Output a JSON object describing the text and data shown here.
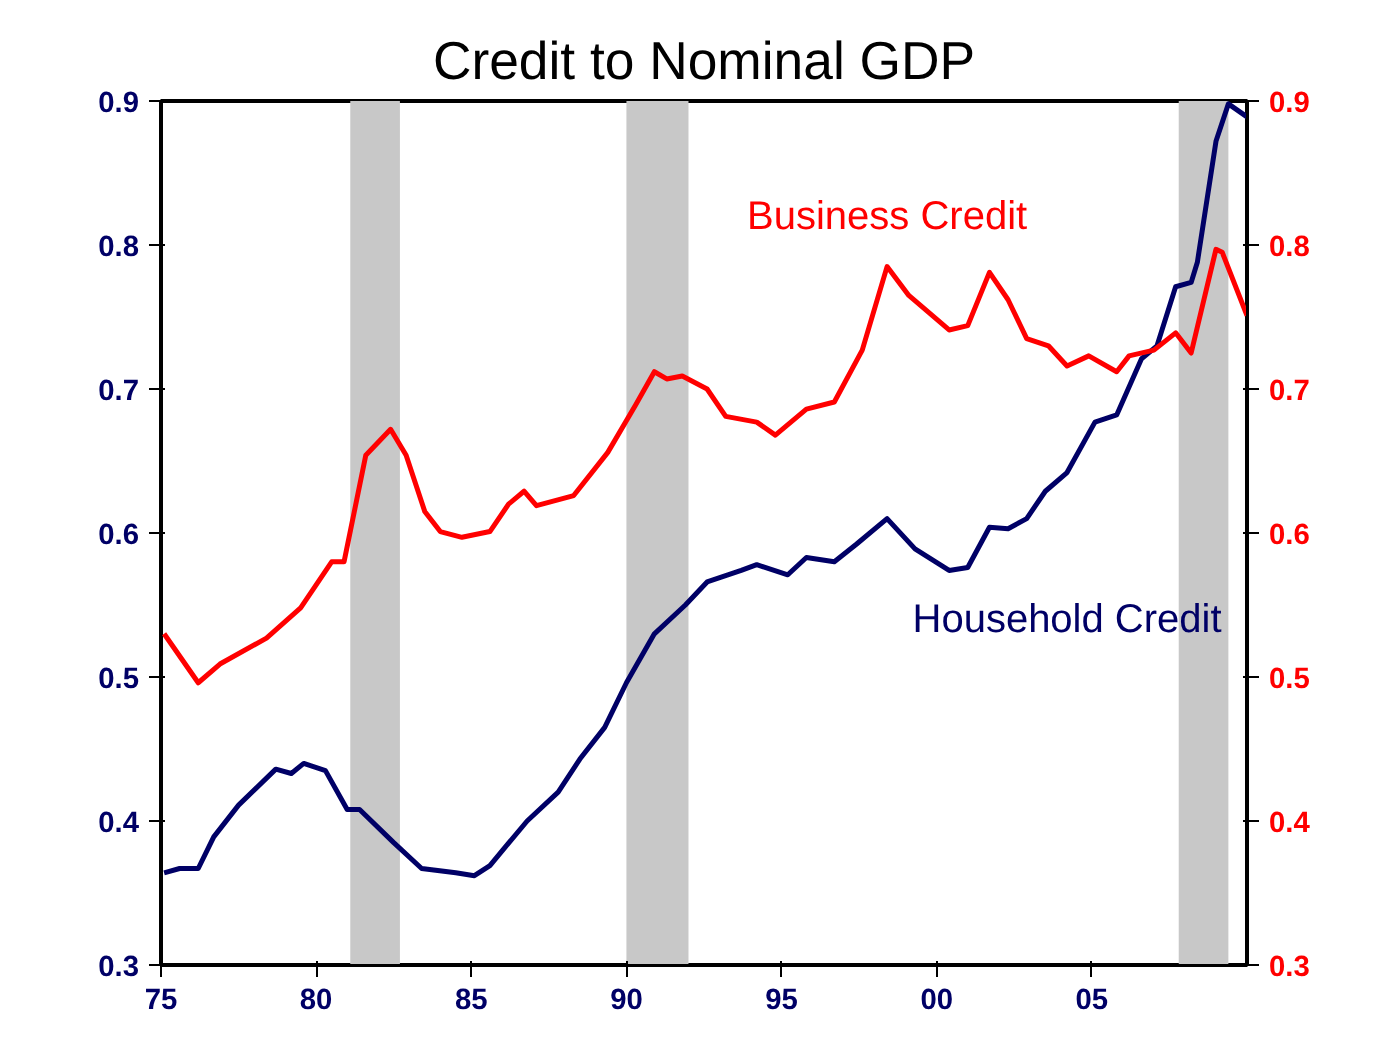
{
  "chart_data": {
    "type": "line",
    "title": "Credit to Nominal GDP",
    "xlim": [
      1975,
      2010
    ],
    "xticks": [
      {
        "value": 1975,
        "label": "75"
      },
      {
        "value": 1980,
        "label": "80"
      },
      {
        "value": 1985,
        "label": "85"
      },
      {
        "value": 1990,
        "label": "90"
      },
      {
        "value": 1995,
        "label": "95"
      },
      {
        "value": 2000,
        "label": "00"
      },
      {
        "value": 2005,
        "label": "05"
      }
    ],
    "ylim": [
      0.3,
      0.9
    ],
    "yticks": [
      0.3,
      0.4,
      0.5,
      0.6,
      0.7,
      0.8,
      0.9
    ],
    "y2lim": [
      0.3,
      0.9
    ],
    "y2ticks": [
      0.3,
      0.4,
      0.5,
      0.6,
      0.7,
      0.8,
      0.9
    ],
    "grid": false,
    "legend": false,
    "series": [
      {
        "name": "Household Credit",
        "color": "#000066",
        "x": [
          1975.1,
          1975.6,
          1976.2,
          1976.7,
          1977.5,
          1978.7,
          1979.2,
          1979.6,
          1980.3,
          1981.0,
          1981.4,
          1982.5,
          1983.4,
          1984.5,
          1985.1,
          1985.6,
          1986.1,
          1986.8,
          1987.8,
          1988.5,
          1989.3,
          1990.0,
          1990.9,
          1991.9,
          1992.6,
          1993.7,
          1994.2,
          1995.2,
          1995.8,
          1996.7,
          1997.4,
          1998.4,
          1999.3,
          2000.4,
          2001.0,
          2001.7,
          2002.3,
          2002.9,
          2003.5,
          2004.2,
          2005.1,
          2005.8,
          2006.6,
          2007.1,
          2007.7,
          2008.2,
          2008.4,
          2009.0,
          2009.4,
          2010.0
        ],
        "values": [
          0.364,
          0.367,
          0.367,
          0.389,
          0.411,
          0.436,
          0.433,
          0.44,
          0.435,
          0.408,
          0.408,
          0.385,
          0.367,
          0.364,
          0.362,
          0.369,
          0.382,
          0.4,
          0.42,
          0.443,
          0.465,
          0.496,
          0.53,
          0.55,
          0.566,
          0.574,
          0.578,
          0.571,
          0.583,
          0.58,
          0.592,
          0.61,
          0.589,
          0.574,
          0.576,
          0.604,
          0.603,
          0.61,
          0.629,
          0.642,
          0.677,
          0.682,
          0.721,
          0.73,
          0.771,
          0.774,
          0.788,
          0.872,
          0.898,
          0.889
        ]
      },
      {
        "name": "Business Credit",
        "color": "#ff0000",
        "axis": "y2",
        "x": [
          1975.1,
          1976.2,
          1976.9,
          1978.4,
          1979.5,
          1980.5,
          1980.9,
          1981.6,
          1982.4,
          1982.9,
          1983.5,
          1984.0,
          1984.7,
          1985.6,
          1986.2,
          1986.7,
          1987.1,
          1988.3,
          1989.4,
          1990.3,
          1990.9,
          1991.3,
          1991.8,
          1992.6,
          1993.2,
          1994.2,
          1994.8,
          1995.8,
          1996.7,
          1997.6,
          1998.4,
          1999.1,
          2000.4,
          2001.0,
          2001.7,
          2002.3,
          2002.9,
          2003.6,
          2004.2,
          2004.9,
          2005.8,
          2006.2,
          2007.0,
          2007.7,
          2008.2,
          2009.0,
          2009.2,
          2010.0
        ],
        "values": [
          0.53,
          0.496,
          0.509,
          0.527,
          0.548,
          0.58,
          0.58,
          0.654,
          0.672,
          0.654,
          0.615,
          0.601,
          0.597,
          0.601,
          0.62,
          0.629,
          0.619,
          0.626,
          0.656,
          0.689,
          0.712,
          0.707,
          0.709,
          0.7,
          0.681,
          0.677,
          0.668,
          0.686,
          0.691,
          0.727,
          0.785,
          0.765,
          0.741,
          0.744,
          0.781,
          0.762,
          0.735,
          0.73,
          0.716,
          0.723,
          0.712,
          0.723,
          0.727,
          0.739,
          0.725,
          0.797,
          0.795,
          0.751
        ]
      }
    ],
    "bands": [
      {
        "axis": "x",
        "from": 1981.1,
        "to": 1982.7,
        "color": "#c8c8c8"
      },
      {
        "axis": "x",
        "from": 1990.0,
        "to": 1992.0,
        "color": "#c8c8c8"
      },
      {
        "axis": "x",
        "from": 2007.8,
        "to": 2009.4,
        "color": "#c8c8c8"
      }
    ]
  }
}
